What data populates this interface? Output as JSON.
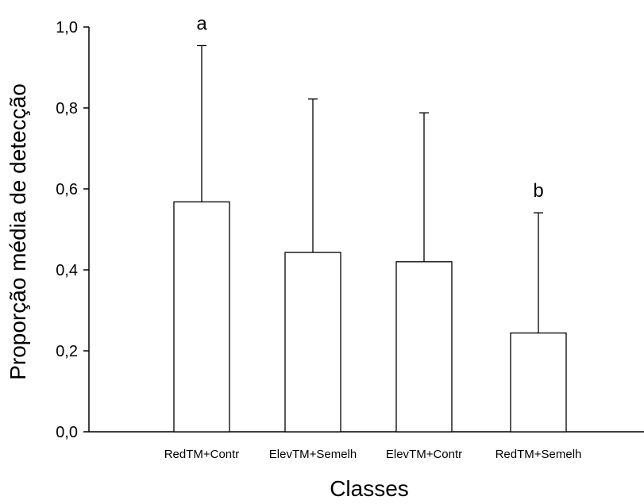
{
  "chart_data": {
    "type": "bar",
    "xlabel": "Classes",
    "ylabel": "Proporção média de detecção",
    "ylim": [
      0,
      1.0
    ],
    "yticks": [
      "0,0",
      "0,2",
      "0,4",
      "0,6",
      "0,8",
      "1,0"
    ],
    "categories": [
      "RedTM+Contr",
      "ElevTM+Semelh",
      "ElevTM+Contr",
      "RedTM+Semelh"
    ],
    "values": [
      0.568,
      0.443,
      0.42,
      0.244
    ],
    "error_upper": [
      0.954,
      0.822,
      0.788,
      0.541
    ],
    "annotations": [
      "a",
      "",
      "",
      "b"
    ],
    "bar_fill": "#ffffff",
    "bar_stroke": "#000000",
    "grid": false,
    "legend": "none"
  }
}
